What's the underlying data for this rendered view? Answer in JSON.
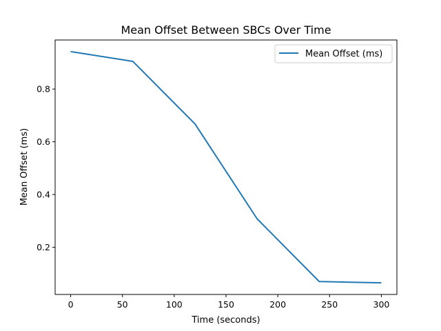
{
  "chart_data": {
    "type": "line",
    "title": "Mean Offset Between SBCs Over Time",
    "xlabel": "Time (seconds)",
    "ylabel": "Mean Offset (ms)",
    "x": [
      0,
      60,
      120,
      180,
      240,
      300
    ],
    "series": [
      {
        "name": "Mean Offset (ms)",
        "values": [
          0.942,
          0.905,
          0.668,
          0.308,
          0.07,
          0.065
        ],
        "color": "#1f77b4"
      }
    ],
    "xlim": [
      -15,
      315
    ],
    "ylim": [
      0.021,
      0.986
    ],
    "xticks": [
      0,
      50,
      100,
      150,
      200,
      250,
      300
    ],
    "yticks": [
      0.2,
      0.4,
      0.6,
      0.8
    ],
    "ytick_labels": [
      "0.2",
      "0.4",
      "0.6",
      "0.8"
    ],
    "grid": false,
    "legend_position": "top-right"
  }
}
